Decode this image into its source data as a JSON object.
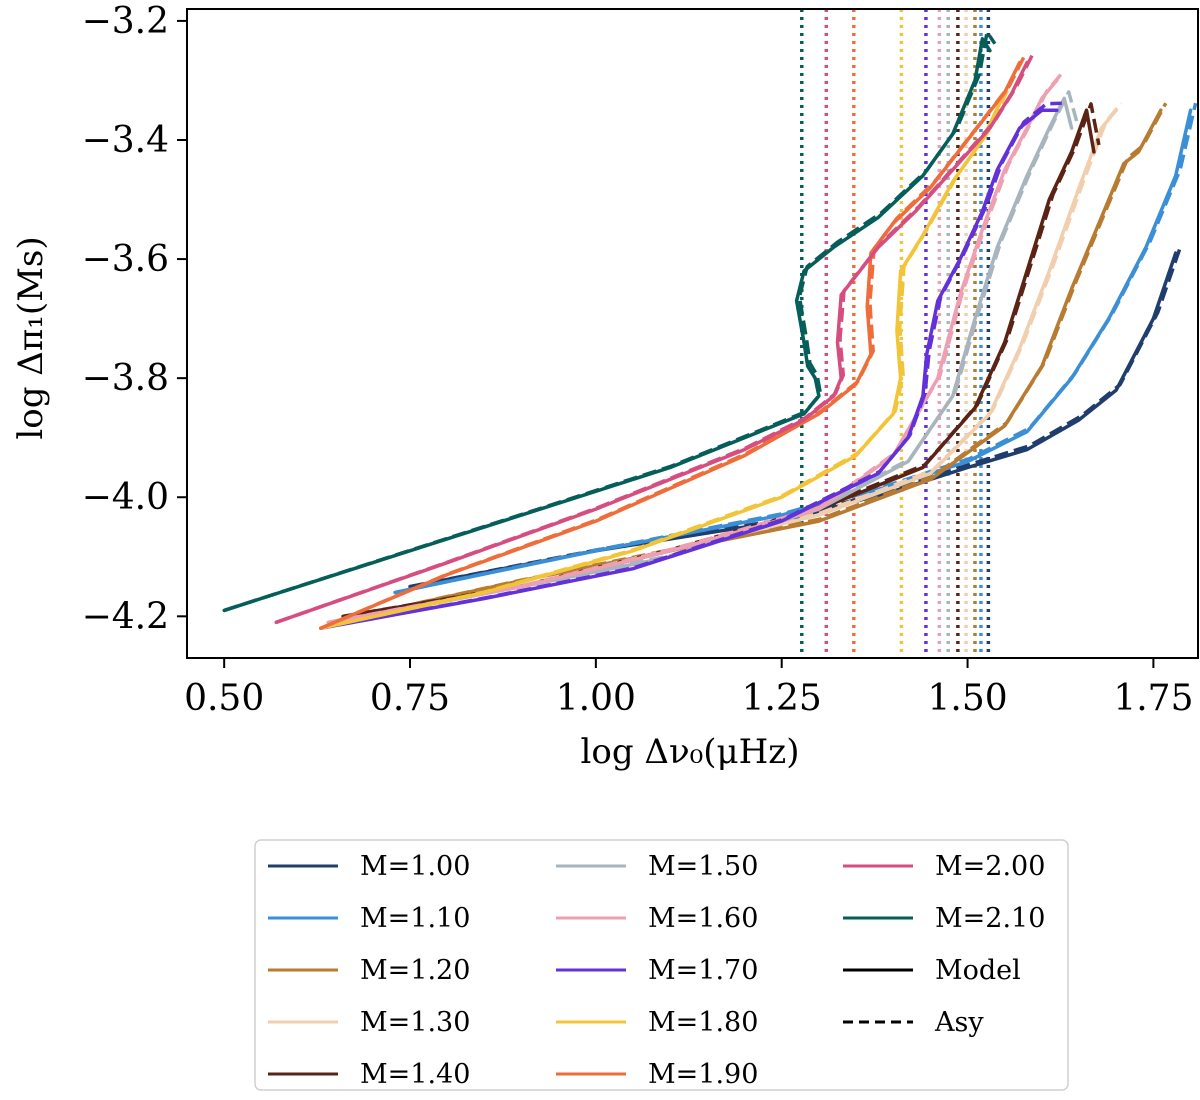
{
  "chart_data": {
    "type": "line",
    "title": "",
    "xlabel": "log Δν₀(μHz)",
    "ylabel": "log Δπ₁(Ms)",
    "xlim": [
      0.45,
      1.81
    ],
    "ylim": [
      -4.27,
      -3.18
    ],
    "xticks": [
      0.5,
      0.75,
      1.0,
      1.25,
      1.5,
      1.75
    ],
    "xtick_labels": [
      "0.50",
      "0.75",
      "1.00",
      "1.25",
      "1.50",
      "1.75"
    ],
    "yticks": [
      -3.2,
      -3.4,
      -3.6,
      -3.8,
      -4.0,
      -4.2
    ],
    "ytick_labels": [
      "−3.2",
      "−3.4",
      "−3.6",
      "−3.8",
      "−4.0",
      "−4.2"
    ],
    "grid": false,
    "legend_position": "below",
    "series": [
      {
        "name": "M=1.00",
        "color": "#1f3e6e",
        "x": [
          0.75,
          1.0,
          1.25,
          1.4,
          1.5,
          1.58,
          1.65,
          1.7,
          1.75,
          1.78
        ],
        "y": [
          -4.15,
          -4.09,
          -4.04,
          -3.99,
          -3.95,
          -3.92,
          -3.87,
          -3.82,
          -3.7,
          -3.59
        ]
      },
      {
        "name": "M=1.10",
        "color": "#3a8fd6",
        "x": [
          0.73,
          1.0,
          1.25,
          1.4,
          1.5,
          1.58,
          1.64,
          1.69,
          1.74,
          1.78,
          1.8
        ],
        "y": [
          -4.16,
          -4.09,
          -4.03,
          -3.98,
          -3.94,
          -3.89,
          -3.8,
          -3.7,
          -3.58,
          -3.46,
          -3.35
        ]
      },
      {
        "name": "M=1.20",
        "color": "#b77b31",
        "x": [
          0.68,
          0.9,
          1.1,
          1.3,
          1.45,
          1.55,
          1.6,
          1.64,
          1.68,
          1.71,
          1.73,
          1.76
        ],
        "y": [
          -4.2,
          -4.14,
          -4.09,
          -4.04,
          -3.97,
          -3.88,
          -3.78,
          -3.65,
          -3.53,
          -3.44,
          -3.42,
          -3.35
        ]
      },
      {
        "name": "M=1.30",
        "color": "#f1cfae",
        "x": [
          0.67,
          0.9,
          1.1,
          1.3,
          1.45,
          1.53,
          1.57,
          1.61,
          1.65,
          1.68,
          1.7
        ],
        "y": [
          -4.2,
          -4.15,
          -4.09,
          -4.03,
          -3.96,
          -3.86,
          -3.75,
          -3.62,
          -3.48,
          -3.38,
          -3.35
        ]
      },
      {
        "name": "M=1.40",
        "color": "#5a2314",
        "x": [
          0.66,
          0.9,
          1.1,
          1.3,
          1.44,
          1.51,
          1.55,
          1.58,
          1.61,
          1.64,
          1.66,
          1.67
        ],
        "y": [
          -4.2,
          -4.15,
          -4.09,
          -4.02,
          -3.95,
          -3.85,
          -3.74,
          -3.62,
          -3.5,
          -3.42,
          -3.35,
          -3.42
        ]
      },
      {
        "name": "M=1.50",
        "color": "#a8b4be",
        "x": [
          0.65,
          0.9,
          1.1,
          1.3,
          1.42,
          1.48,
          1.51,
          1.54,
          1.58,
          1.61,
          1.63,
          1.64
        ],
        "y": [
          -4.21,
          -4.15,
          -4.1,
          -4.02,
          -3.94,
          -3.83,
          -3.7,
          -3.58,
          -3.46,
          -3.38,
          -3.33,
          -3.38
        ]
      },
      {
        "name": "M=1.60",
        "color": "#eea0b2",
        "x": [
          0.64,
          0.9,
          1.1,
          1.3,
          1.4,
          1.46,
          1.49,
          1.52,
          1.55,
          1.58,
          1.6,
          1.62
        ],
        "y": [
          -4.21,
          -4.15,
          -4.09,
          -4.02,
          -3.93,
          -3.8,
          -3.66,
          -3.55,
          -3.45,
          -3.38,
          -3.33,
          -3.3
        ]
      },
      {
        "name": "M=1.70",
        "color": "#6231d9",
        "x": [
          0.63,
          0.85,
          1.05,
          1.25,
          1.38,
          1.42,
          1.44,
          1.445,
          1.46,
          1.49,
          1.52,
          1.54,
          1.57,
          1.6,
          1.62
        ],
        "y": [
          -4.22,
          -4.17,
          -4.12,
          -4.04,
          -3.96,
          -3.9,
          -3.83,
          -3.76,
          -3.67,
          -3.6,
          -3.52,
          -3.45,
          -3.38,
          -3.35,
          -3.35
        ]
      },
      {
        "name": "M=1.80",
        "color": "#f2c438",
        "x": [
          0.63,
          0.85,
          1.05,
          1.25,
          1.35,
          1.4,
          1.41,
          1.405,
          1.41,
          1.44,
          1.48,
          1.52,
          1.55
        ],
        "y": [
          -4.22,
          -4.16,
          -4.09,
          -4.0,
          -3.93,
          -3.86,
          -3.8,
          -3.72,
          -3.62,
          -3.56,
          -3.47,
          -3.4,
          -3.32
        ]
      },
      {
        "name": "M=1.90",
        "color": "#ef6d3a",
        "x": [
          0.63,
          0.8,
          1.0,
          1.2,
          1.3,
          1.35,
          1.37,
          1.365,
          1.37,
          1.4,
          1.45,
          1.5,
          1.55,
          1.57
        ],
        "y": [
          -4.22,
          -4.13,
          -4.04,
          -3.93,
          -3.86,
          -3.81,
          -3.76,
          -3.68,
          -3.59,
          -3.54,
          -3.48,
          -3.4,
          -3.32,
          -3.27
        ]
      },
      {
        "name": "M=2.00",
        "color": "#d64e80",
        "x": [
          0.57,
          0.8,
          1.0,
          1.2,
          1.28,
          1.32,
          1.33,
          1.325,
          1.33,
          1.38,
          1.43,
          1.48,
          1.53,
          1.56,
          1.58
        ],
        "y": [
          -4.21,
          -4.11,
          -4.02,
          -3.92,
          -3.87,
          -3.83,
          -3.8,
          -3.74,
          -3.66,
          -3.58,
          -3.52,
          -3.45,
          -3.38,
          -3.32,
          -3.27
        ]
      },
      {
        "name": "M=2.10",
        "color": "#065e5a",
        "x": [
          0.5,
          0.7,
          0.9,
          1.1,
          1.22,
          1.28,
          1.3,
          1.295,
          1.285,
          1.28,
          1.27,
          1.28,
          1.32,
          1.38,
          1.44,
          1.48,
          1.51,
          1.52,
          1.53
        ],
        "y": [
          -4.19,
          -4.11,
          -4.03,
          -3.95,
          -3.89,
          -3.86,
          -3.83,
          -3.8,
          -3.78,
          -3.74,
          -3.67,
          -3.62,
          -3.58,
          -3.53,
          -3.46,
          -3.39,
          -3.3,
          -3.23,
          -3.25
        ]
      }
    ],
    "vlines": [
      {
        "x": 1.277,
        "color": "#065e5a"
      },
      {
        "x": 1.31,
        "color": "#d64e80"
      },
      {
        "x": 1.347,
        "color": "#ef6d3a"
      },
      {
        "x": 1.411,
        "color": "#f2c438"
      },
      {
        "x": 1.444,
        "color": "#6231d9"
      },
      {
        "x": 1.462,
        "color": "#eea0b2"
      },
      {
        "x": 1.474,
        "color": "#a8b4be"
      },
      {
        "x": 1.487,
        "color": "#5a2314"
      },
      {
        "x": 1.498,
        "color": "#f1cfae"
      },
      {
        "x": 1.51,
        "color": "#b77b31"
      },
      {
        "x": 1.518,
        "color": "#3a8fd6"
      },
      {
        "x": 1.528,
        "color": "#1f3e6e"
      }
    ],
    "legend": [
      {
        "label": "M=1.00",
        "color": "#1f3e6e",
        "style": "solid"
      },
      {
        "label": "M=1.10",
        "color": "#3a8fd6",
        "style": "solid"
      },
      {
        "label": "M=1.20",
        "color": "#b77b31",
        "style": "solid"
      },
      {
        "label": "M=1.30",
        "color": "#f1cfae",
        "style": "solid"
      },
      {
        "label": "M=1.40",
        "color": "#5a2314",
        "style": "solid"
      },
      {
        "label": "M=1.50",
        "color": "#a8b4be",
        "style": "solid"
      },
      {
        "label": "M=1.60",
        "color": "#eea0b2",
        "style": "solid"
      },
      {
        "label": "M=1.70",
        "color": "#6231d9",
        "style": "solid"
      },
      {
        "label": "M=1.80",
        "color": "#f2c438",
        "style": "solid"
      },
      {
        "label": "M=1.90",
        "color": "#ef6d3a",
        "style": "solid"
      },
      {
        "label": "M=2.00",
        "color": "#d64e80",
        "style": "solid"
      },
      {
        "label": "M=2.10",
        "color": "#065e5a",
        "style": "solid"
      },
      {
        "label": "Model",
        "color": "#000000",
        "style": "solid"
      },
      {
        "label": "Asy",
        "color": "#000000",
        "style": "dashed"
      }
    ]
  }
}
